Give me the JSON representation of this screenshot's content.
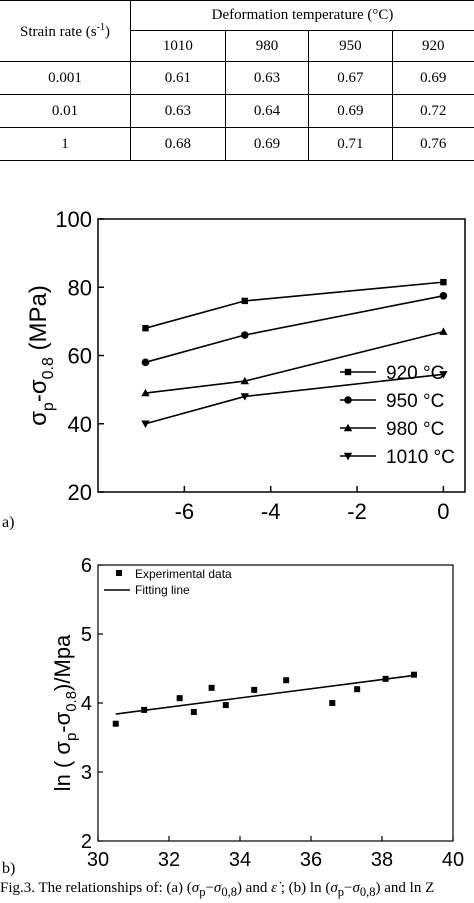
{
  "table": {
    "row_header": "Strain rate (s-1)",
    "row_header_main": "Strain rate (s",
    "row_header_sup": "-1",
    "row_header_end": ")",
    "group_header": "Deformation temperature (°C)",
    "temps": [
      "1010",
      "980",
      "950",
      "920"
    ],
    "rows": [
      {
        "rate": "0.001",
        "values": [
          "0.61",
          "0.63",
          "0.67",
          "0.69"
        ]
      },
      {
        "rate": "0.01",
        "values": [
          "0.63",
          "0.64",
          "0.69",
          "0.72"
        ]
      },
      {
        "rate": "1",
        "values": [
          "0.68",
          "0.69",
          "0.71",
          "0.76"
        ]
      }
    ]
  },
  "chart_data": [
    {
      "type": "line",
      "panel_label": "a)",
      "ylabel": "σp-σ0.8 (MPa)",
      "xlabel": "",
      "xlim": [
        -8,
        0.5
      ],
      "ylim": [
        20,
        100
      ],
      "xticks": [
        "-6",
        "-4",
        "-2",
        "0"
      ],
      "yticks": [
        "20",
        "40",
        "60",
        "80",
        "100"
      ],
      "x": [
        -6.9,
        -4.6,
        0
      ],
      "series": [
        {
          "name": "920 °C",
          "marker": "square",
          "values": [
            68,
            76,
            81.5
          ]
        },
        {
          "name": "950 °C",
          "marker": "circle",
          "values": [
            58,
            66,
            77.5
          ]
        },
        {
          "name": "980 °C",
          "marker": "triangle-up",
          "values": [
            49,
            52.5,
            67
          ]
        },
        {
          "name": "1010 °C",
          "marker": "triangle-down",
          "values": [
            40,
            48,
            54.5
          ]
        }
      ],
      "legend_position": "bottom-right",
      "grid": false
    },
    {
      "type": "scatter",
      "panel_label": "b)",
      "ylabel": "ln ( σp-σ0.8)/Mpa",
      "xlabel": "",
      "xlim": [
        30,
        40
      ],
      "ylim": [
        2,
        6
      ],
      "xticks": [
        "30",
        "32",
        "34",
        "36",
        "38",
        "40"
      ],
      "yticks": [
        "2",
        "3",
        "4",
        "5",
        "6"
      ],
      "series": [
        {
          "name": "Experimental data",
          "x": [
            30.5,
            31.3,
            32.3,
            32.7,
            33.2,
            33.6,
            34.4,
            35.3,
            36.6,
            37.3,
            38.1,
            38.9
          ],
          "y": [
            3.7,
            3.9,
            4.07,
            3.87,
            4.22,
            3.97,
            4.19,
            4.33,
            4.0,
            4.2,
            4.35,
            4.41
          ]
        }
      ],
      "fit_line": {
        "name": "Fitting line",
        "x": [
          30.5,
          38.9
        ],
        "y": [
          3.84,
          4.4
        ]
      },
      "legend_position": "top-left",
      "grid": false
    }
  ],
  "caption": {
    "prefix": "Fig.3. The relationships of: (a) (",
    "sp": "σ",
    "sp_sub": "p",
    "minus": "−",
    "s08": "σ",
    "s08_sub": "0,8",
    "mid": ") and ",
    "edot": "ε̇",
    "mid2": " ; (b) ln (",
    "sp2": "σ",
    "sp2_sub": "p",
    "minus2": "−",
    "s082": "σ",
    "s082_sub": "0,8",
    "end": ") and ln Z"
  }
}
